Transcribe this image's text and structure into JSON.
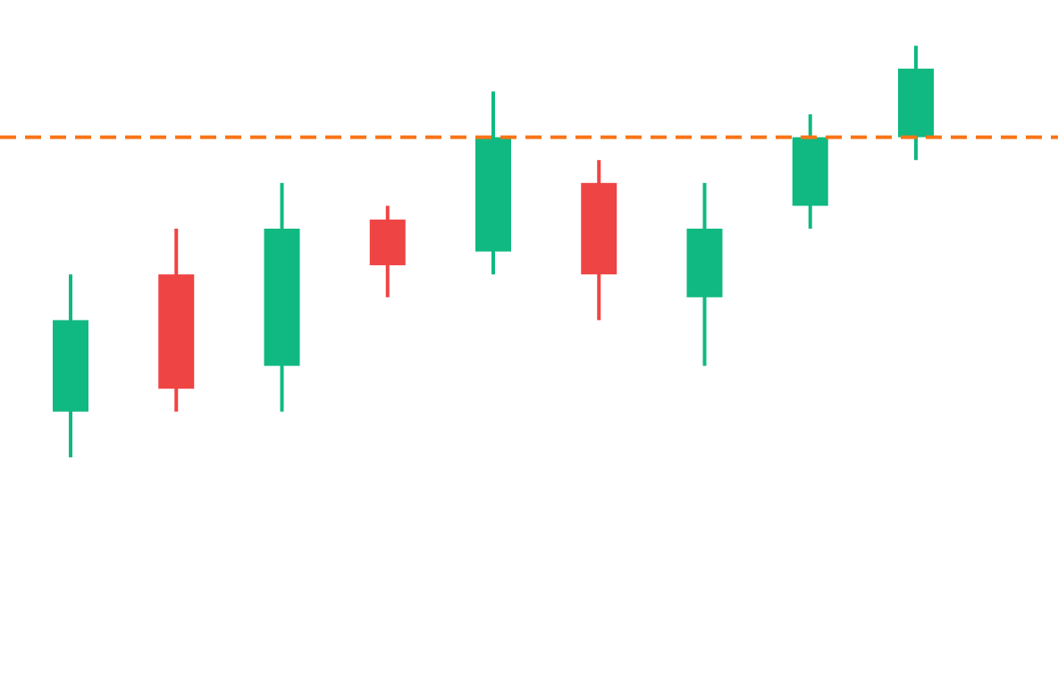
{
  "chart_data": {
    "type": "candlestick",
    "title": "",
    "xlabel": "",
    "ylabel": "",
    "ylim": [
      0,
      15
    ],
    "grid": false,
    "legend": "none",
    "colors": {
      "up": "#10b981",
      "down": "#ef4444",
      "reference_line": "#f97316"
    },
    "reference_line": {
      "value": 12,
      "style": "dashed"
    },
    "candles": [
      {
        "open": 6,
        "high": 9,
        "low": 5,
        "close": 8
      },
      {
        "open": 9,
        "high": 10,
        "low": 6,
        "close": 6.5
      },
      {
        "open": 7,
        "high": 11,
        "low": 6,
        "close": 10
      },
      {
        "open": 10.2,
        "high": 10.5,
        "low": 8.5,
        "close": 9.2
      },
      {
        "open": 9.5,
        "high": 13,
        "low": 9,
        "close": 12
      },
      {
        "open": 11,
        "high": 11.5,
        "low": 8,
        "close": 9
      },
      {
        "open": 8.5,
        "high": 11,
        "low": 7,
        "close": 10
      },
      {
        "open": 10.5,
        "high": 12.5,
        "low": 10,
        "close": 12
      },
      {
        "open": 12,
        "high": 14,
        "low": 11.5,
        "close": 13.5
      }
    ]
  }
}
